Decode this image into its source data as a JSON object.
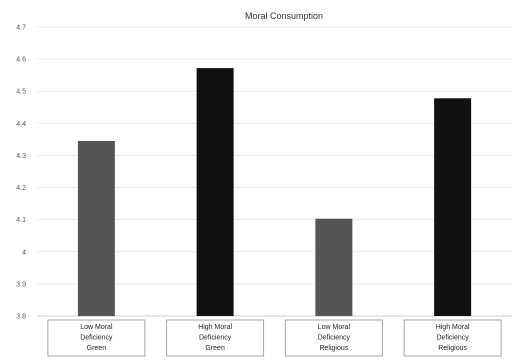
{
  "chart_data": {
    "type": "bar",
    "title": "Moral Consumption",
    "xlabel": "",
    "ylabel": "",
    "ylim": [
      3.8,
      4.7
    ],
    "yticks": [
      "3.8",
      "3.9",
      "4",
      "4.1",
      "4.2",
      "4.3",
      "4.4",
      "4.5",
      "4.6",
      "4.7"
    ],
    "ytick_values": [
      3.8,
      3.9,
      4.0,
      4.1,
      4.2,
      4.3,
      4.4,
      4.5,
      4.6,
      4.7
    ],
    "grid": true,
    "categories": [
      [
        "Low Moral",
        "Deficiency",
        "Green"
      ],
      [
        "High Moral",
        "Deficiency",
        "Green"
      ],
      [
        "Low Moral",
        "Deficiency",
        "Religious"
      ],
      [
        "High Moral",
        "Deficiency",
        "Religious"
      ]
    ],
    "values": [
      4.345,
      4.572,
      4.103,
      4.478
    ],
    "colors": [
      "#555555",
      "#111111",
      "#555555",
      "#111111"
    ]
  }
}
